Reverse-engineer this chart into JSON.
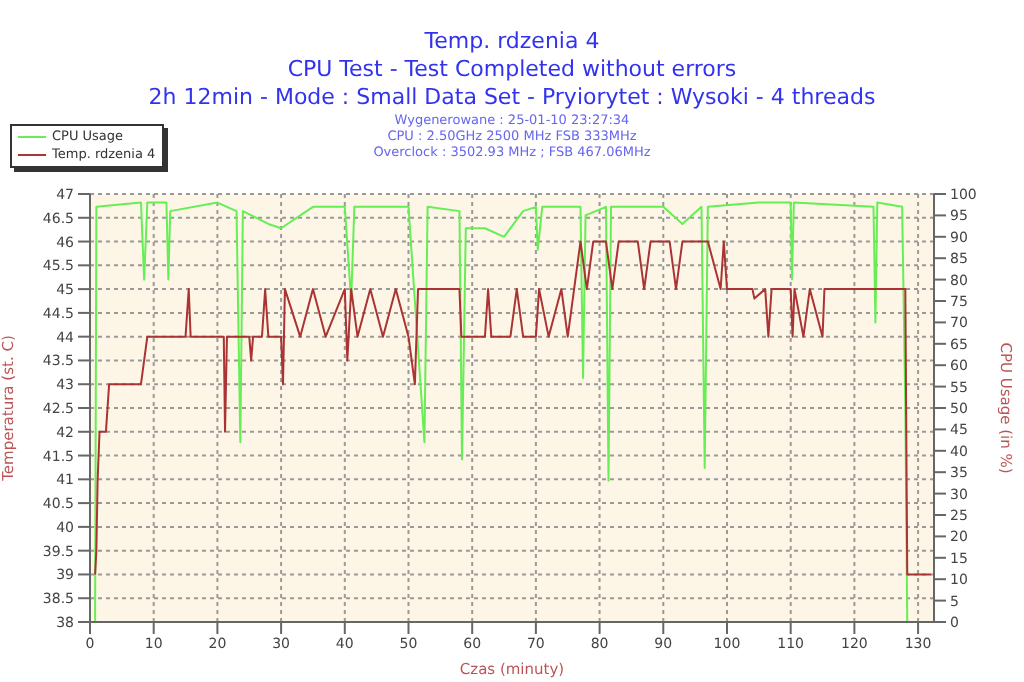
{
  "chart_data": {
    "type": "line",
    "title": "Temp. rdzenia 4",
    "subtitle": "CPU Test - Test Completed without errors",
    "annotations": [
      "2h 12min - Mode : Small Data Set - Pryiorytet : Wysoki - 4 threads",
      "Wygenerowane : 25-01-10 23:27:34",
      "CPU : 2.50GHz 2500 MHz FSB 333MHz",
      "Overclock : 3502.93 MHz ; FSB 467.06MHz"
    ],
    "xlabel": "Czas (minuty)",
    "ylabel": "Temperatura (st. C)",
    "y2label": "CPU Usage (in %)",
    "xlim": [
      0,
      132.5
    ],
    "xticks": [
      0,
      10,
      20,
      30,
      40,
      50,
      60,
      70,
      80,
      90,
      100,
      110,
      120,
      130
    ],
    "ylim": [
      38,
      47
    ],
    "yticks": [
      38,
      38.5,
      39,
      39.5,
      40,
      40.5,
      41,
      41.5,
      42,
      42.5,
      43,
      43.5,
      44,
      44.5,
      45,
      45.5,
      46,
      46.5,
      47
    ],
    "y2lim": [
      0,
      100
    ],
    "y2ticks": [
      0,
      5,
      10,
      15,
      20,
      25,
      30,
      35,
      40,
      45,
      50,
      55,
      60,
      65,
      70,
      75,
      80,
      85,
      90,
      95,
      100
    ],
    "grid": true,
    "legend": "top left",
    "marker": "none",
    "line_style": "solid",
    "series": [
      {
        "name": "CPU Usage",
        "color": "#66ee55",
        "axis": "y2",
        "x": [
          0,
          0.8,
          1,
          8,
          8.5,
          9,
          12,
          12.3,
          12.6,
          20,
          23,
          23.6,
          24,
          28,
          30,
          35,
          40,
          41,
          41.5,
          50,
          52.5,
          53,
          58,
          58.4,
          59,
          62,
          65,
          68,
          70,
          70.3,
          71,
          77,
          77.4,
          77.8,
          81,
          81.4,
          81.8,
          90,
          93,
          96,
          96.5,
          97,
          105,
          110,
          110.2,
          110.5,
          123,
          123.3,
          123.6,
          127.5,
          128,
          128.3,
          132
        ],
        "values": [
          0,
          0,
          97,
          98,
          80,
          98,
          98,
          80,
          96,
          98,
          96,
          42,
          96,
          93,
          92,
          97,
          97,
          75,
          97,
          97,
          42,
          97,
          96,
          38,
          92,
          92,
          90,
          96,
          97,
          87,
          97,
          97,
          57,
          95,
          97,
          33,
          97,
          97,
          93,
          97,
          36,
          97,
          98,
          98,
          80,
          98,
          97,
          70,
          98,
          97,
          50,
          0,
          0
        ]
      },
      {
        "name": "Temp. rdzenia 4",
        "color": "#aa3333",
        "x": [
          0.8,
          1,
          1.2,
          1.5,
          2.5,
          3,
          8,
          9,
          15,
          15.5,
          15.8,
          21,
          21.2,
          21.5,
          25,
          25.3,
          25.6,
          27,
          27.5,
          28,
          30,
          30.3,
          30.6,
          33,
          35,
          37,
          40,
          40.4,
          41,
          42,
          44,
          46,
          48,
          50,
          51,
          51.5,
          58,
          58.3,
          62,
          62.5,
          63,
          66,
          67,
          68,
          70,
          70.5,
          72,
          74,
          75,
          76,
          77,
          78,
          79,
          81,
          82,
          83,
          86,
          87,
          88,
          91,
          92,
          93,
          97,
          99,
          99.5,
          100,
          104,
          104.3,
          106,
          106.5,
          107,
          110,
          110.3,
          110.6,
          112,
          113,
          115,
          115.3,
          128,
          128.3,
          132
        ],
        "values": [
          39,
          39.5,
          41,
          42,
          42,
          43,
          43,
          44,
          44,
          45,
          44,
          44,
          42,
          44,
          44,
          43.5,
          44,
          44,
          45,
          44,
          44,
          43,
          45,
          44,
          45,
          44,
          45,
          43.5,
          45,
          44,
          45,
          44,
          45,
          44,
          43,
          45,
          45,
          44,
          44,
          45,
          44,
          44,
          45,
          44,
          44,
          45,
          44,
          45,
          44,
          45,
          46,
          45,
          46,
          46,
          45,
          46,
          46,
          45,
          46,
          46,
          45,
          46,
          46,
          45,
          46,
          45,
          45,
          44.8,
          45,
          44,
          45,
          45,
          44,
          45,
          44,
          45,
          44,
          45,
          45,
          39,
          39
        ]
      }
    ]
  }
}
